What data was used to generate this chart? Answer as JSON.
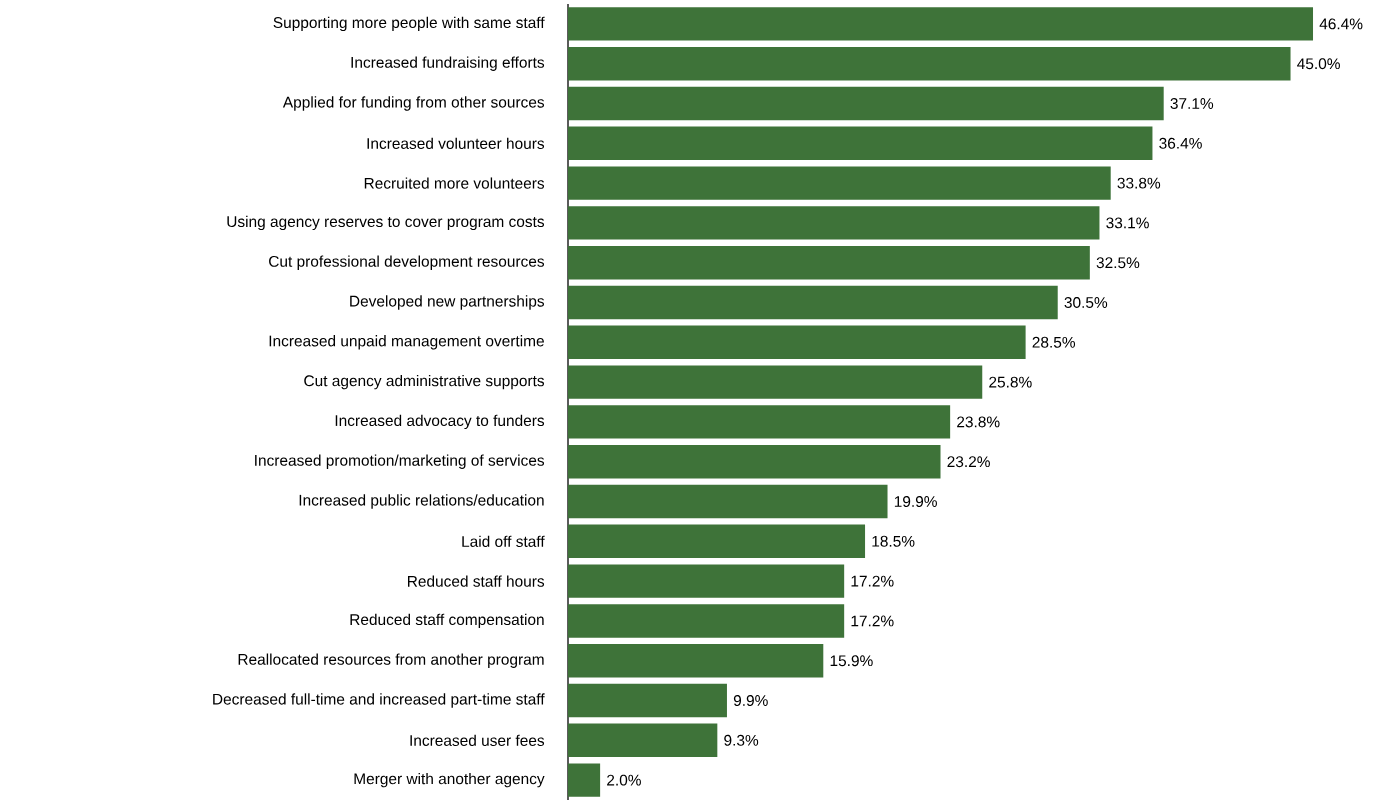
{
  "chart_data": {
    "type": "bar",
    "orientation": "horizontal",
    "color": "#3e7339",
    "categories": [
      "Supporting more people with same staff",
      "Increased fundraising efforts",
      "Applied for funding from other sources",
      "Increased volunteer hours",
      "Recruited more volunteers",
      "Using agency reserves to cover program costs",
      "Cut professional development resources",
      "Developed new partnerships",
      "Increased unpaid management overtime",
      "Cut agency administrative supports",
      "Increased advocacy to funders",
      "Increased promotion/marketing of services",
      "Increased public relations/education",
      "Laid off staff",
      "Reduced staff hours",
      "Reduced staff compensation",
      "Reallocated resources from another program",
      "Decreased full-time and increased part-time staff",
      "Increased user fees",
      "Merger with another agency"
    ],
    "values": [
      46.4,
      45.0,
      37.1,
      36.4,
      33.8,
      33.1,
      32.5,
      30.5,
      28.5,
      25.8,
      23.8,
      23.2,
      19.9,
      18.5,
      17.2,
      17.2,
      15.9,
      9.9,
      9.3,
      2.0
    ],
    "value_labels": [
      "46.4%",
      "45.0%",
      "37.1%",
      "36.4%",
      "33.8%",
      "33.1%",
      "32.5%",
      "30.5%",
      "28.5%",
      "25.8%",
      "23.8%",
      "23.2%",
      "19.9%",
      "18.5%",
      "17.2%",
      "17.2%",
      "15.9%",
      "9.9%",
      "9.3%",
      "2.0%"
    ]
  }
}
